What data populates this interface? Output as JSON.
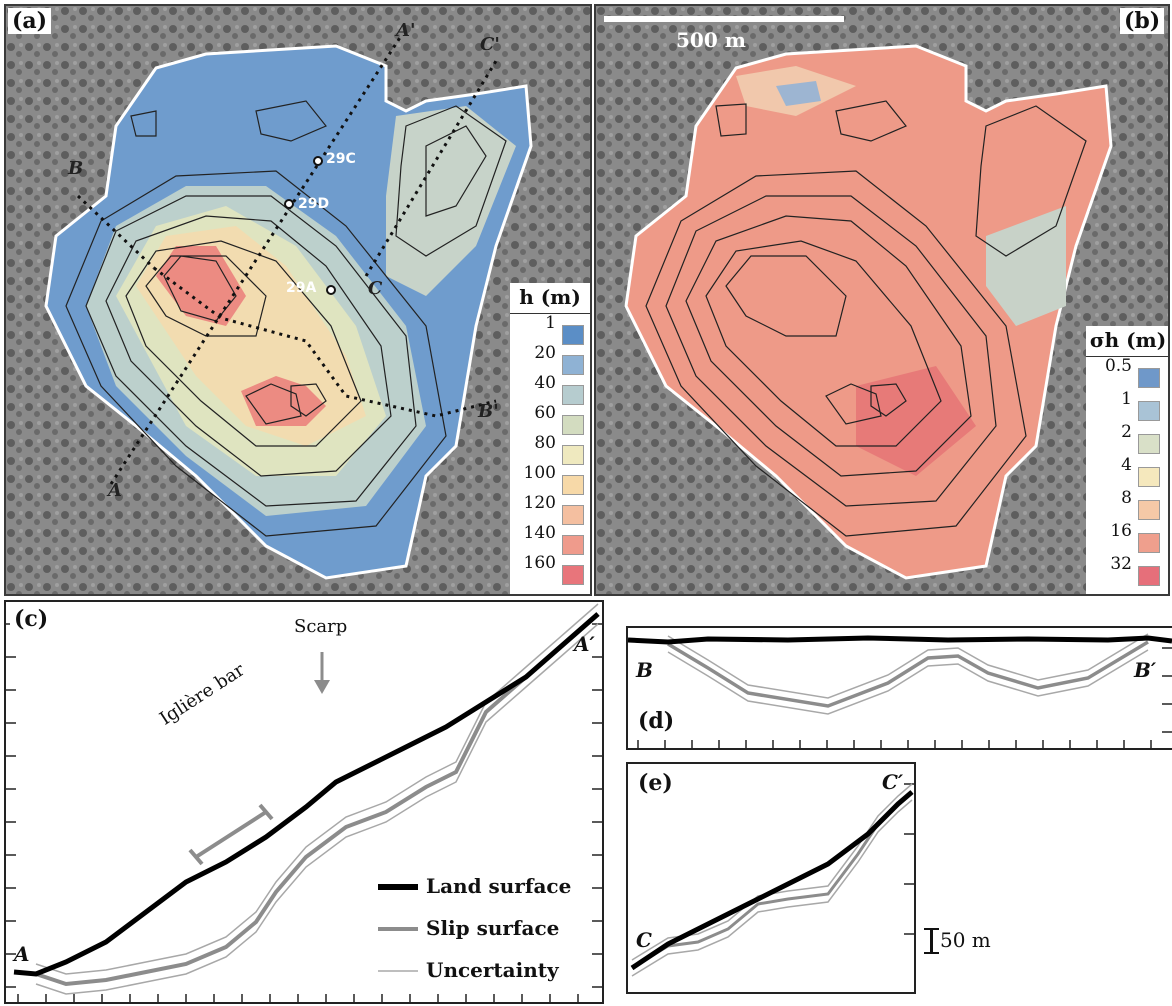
{
  "panel_a": {
    "tag": "(a)",
    "legend_title": "h (m)",
    "legend_values": [
      "1",
      "20",
      "40",
      "60",
      "80",
      "100",
      "120",
      "140",
      "160"
    ],
    "legend_colors": [
      "#5b8ec6",
      "#8fb2d4",
      "#b6cccf",
      "#d3dcc0",
      "#efe9bf",
      "#f7d9a8",
      "#f4bfa0",
      "#ef9b8c",
      "#e8757b"
    ],
    "sections": {
      "a": "A",
      "a_prime": "A'",
      "b": "B",
      "b_prime": "B'",
      "c": "C",
      "c_prime": "C'"
    },
    "sites": [
      "29C",
      "29D",
      "29A"
    ]
  },
  "panel_b": {
    "tag": "(b)",
    "scale_label": "500 m",
    "legend_title": "σh (m)",
    "legend_values": [
      "0.5",
      "1",
      "2",
      "4",
      "8",
      "16",
      "32"
    ],
    "legend_colors": [
      "#6f98c9",
      "#a9c3d6",
      "#d9e0c8",
      "#f5e8bd",
      "#f5c9a7",
      "#ef9f8d",
      "#e66f7a"
    ]
  },
  "panel_c": {
    "tag": "(c)",
    "start": "A",
    "end": "A′",
    "annotations": {
      "scarp": "Scarp",
      "bar": "Iglière bar"
    },
    "legend": [
      "Land surface",
      "Slip surface",
      "Uncertainty"
    ]
  },
  "panel_d": {
    "tag": "(d)",
    "start": "B",
    "end": "B′"
  },
  "panel_e": {
    "tag": "(e)",
    "start": "C",
    "end": "C′",
    "scale_label": "50 m"
  },
  "colors": {
    "land": "#000000",
    "slip": "#8c8c8c",
    "uncertainty": "#a8a8a8"
  }
}
